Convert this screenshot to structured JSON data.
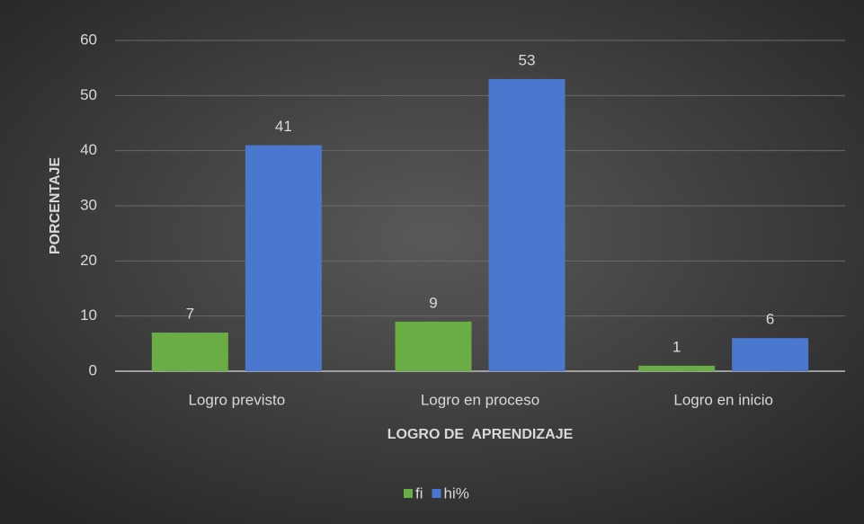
{
  "chart_data": {
    "type": "bar",
    "categories": [
      "Logro previsto",
      "Logro en proceso",
      "Logro en inicio"
    ],
    "series": [
      {
        "name": "fi",
        "color": "#6aad45",
        "values": [
          7,
          9,
          1
        ]
      },
      {
        "name": "hi%",
        "color": "#4a78cf",
        "values": [
          41,
          53,
          6
        ]
      }
    ],
    "ylim": [
      0,
      60
    ],
    "yticks": [
      0,
      10,
      20,
      30,
      40,
      50,
      60
    ],
    "grid": true,
    "xlabel": "LOGRO DE  APRENDIZAJE",
    "ylabel": "PORCENTAJE",
    "legend": "bottom"
  }
}
